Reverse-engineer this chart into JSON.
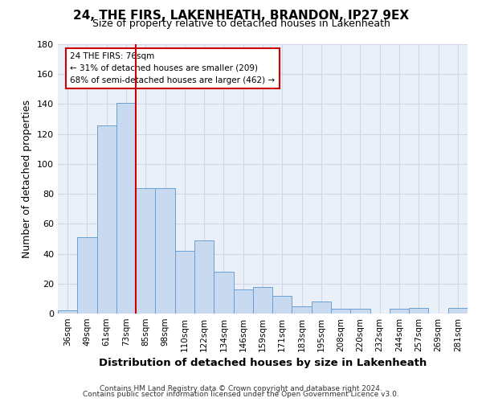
{
  "title": "24, THE FIRS, LAKENHEATH, BRANDON, IP27 9EX",
  "subtitle": "Size of property relative to detached houses in Lakenheath",
  "xlabel": "Distribution of detached houses by size in Lakenheath",
  "ylabel": "Number of detached properties",
  "bar_color": "#c8d9f0",
  "bar_edge_color": "#6aa0d4",
  "categories": [
    "36sqm",
    "49sqm",
    "61sqm",
    "73sqm",
    "85sqm",
    "98sqm",
    "110sqm",
    "122sqm",
    "134sqm",
    "146sqm",
    "159sqm",
    "171sqm",
    "183sqm",
    "195sqm",
    "208sqm",
    "220sqm",
    "232sqm",
    "244sqm",
    "257sqm",
    "269sqm",
    "281sqm"
  ],
  "values": [
    2,
    51,
    126,
    141,
    84,
    84,
    42,
    49,
    28,
    16,
    18,
    12,
    5,
    8,
    3,
    3,
    0,
    3,
    4,
    0,
    4
  ],
  "vline_x": 3.5,
  "vline_color": "#cc0000",
  "ylim": [
    0,
    180
  ],
  "yticks": [
    0,
    20,
    40,
    60,
    80,
    100,
    120,
    140,
    160,
    180
  ],
  "annotation_title": "24 THE FIRS: 76sqm",
  "annotation_line1": "← 31% of detached houses are smaller (209)",
  "annotation_line2": "68% of semi-detached houses are larger (462) →",
  "annotation_box_color": "#cc0000",
  "footer_line1": "Contains HM Land Registry data © Crown copyright and database right 2024.",
  "footer_line2": "Contains public sector information licensed under the Open Government Licence v3.0.",
  "grid_color": "#d0d8e8",
  "background_color": "#eaf0f8"
}
